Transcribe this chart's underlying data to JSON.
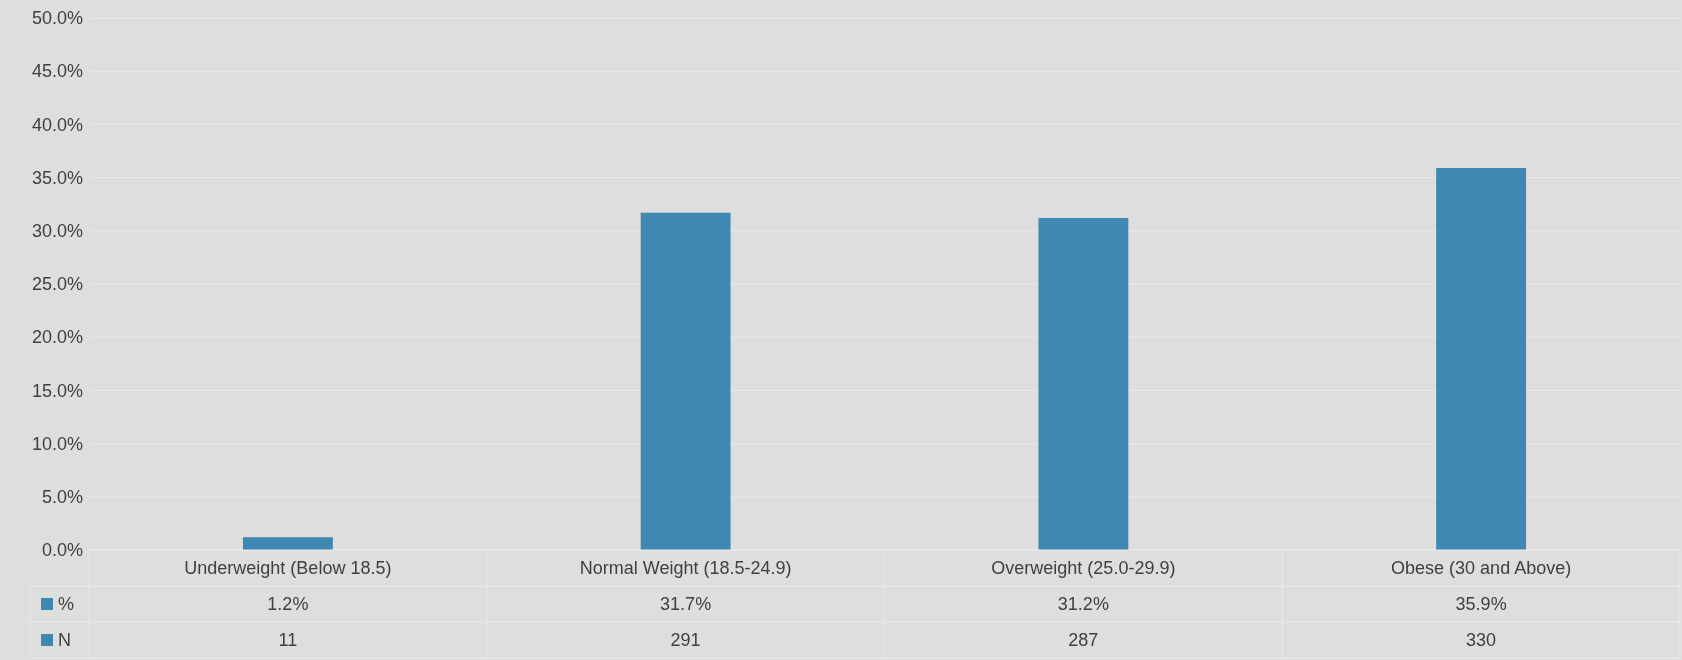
{
  "chart_data": {
    "type": "bar",
    "categories": [
      "Underweight (Below 18.5)",
      "Normal Weight (18.5-24.9)",
      "Overweight (25.0-29.9)",
      "Obese (30 and Above)"
    ],
    "series": [
      {
        "name": "%",
        "color": "#3f88b3",
        "values": [
          1.2,
          31.7,
          31.2,
          35.9
        ],
        "value_labels": [
          "1.2%",
          "31.7%",
          "31.2%",
          "35.9%"
        ]
      },
      {
        "name": "N",
        "type": "other",
        "color": "#3f88b3",
        "values": [
          null,
          null,
          null,
          null
        ],
        "value_labels": [
          "11",
          "291",
          "287",
          "330"
        ]
      }
    ],
    "ylim": [
      0,
      50
    ],
    "yticks": [
      {
        "value": 0,
        "label": "0.0%"
      },
      {
        "value": 5,
        "label": "5.0%"
      },
      {
        "value": 10,
        "label": "10.0%"
      },
      {
        "value": 15,
        "label": "15.0%"
      },
      {
        "value": 20,
        "label": "20.0%"
      },
      {
        "value": 25,
        "label": "25.0%"
      },
      {
        "value": 30,
        "label": "30.0%"
      },
      {
        "value": 35,
        "label": "35.0%"
      },
      {
        "value": 40,
        "label": "40.0%"
      },
      {
        "value": 45,
        "label": "45.0%"
      },
      {
        "value": 50,
        "label": "50.0%"
      }
    ],
    "grid": "y",
    "legend": "bottom"
  }
}
